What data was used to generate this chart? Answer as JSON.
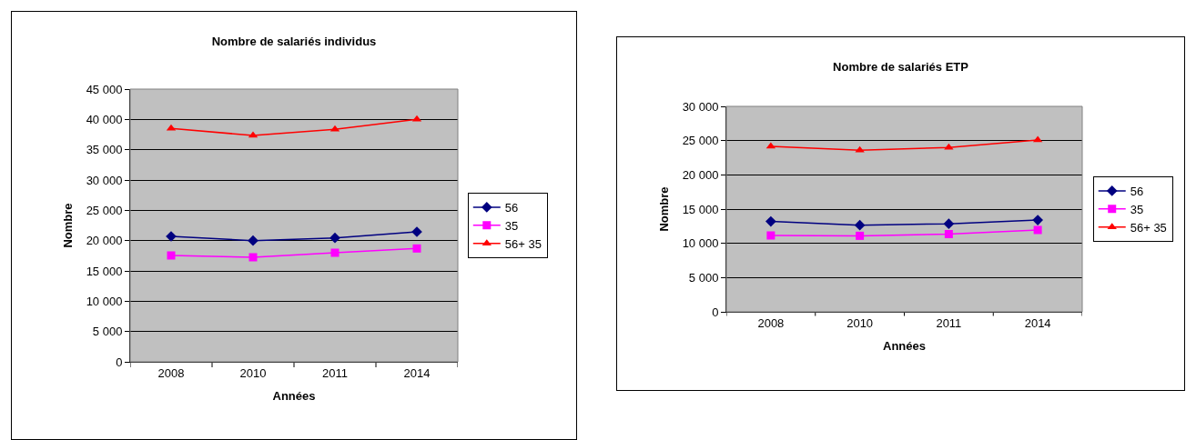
{
  "chart_data": [
    {
      "type": "line",
      "title": "Nombre de salariés individus",
      "xlabel": "Années",
      "ylabel": "Nombre",
      "categories": [
        "2008",
        "2010",
        "2011",
        "2014"
      ],
      "series": [
        {
          "name": "56",
          "color": "#000080",
          "marker": "diamond",
          "values": [
            20700,
            20000,
            20450,
            21450
          ]
        },
        {
          "name": "35",
          "color": "#ff00ff",
          "marker": "square",
          "values": [
            17550,
            17250,
            18000,
            18700
          ]
        },
        {
          "name": "56+ 35",
          "color": "#ff0000",
          "marker": "triangle",
          "values": [
            38500,
            37350,
            38350,
            40000
          ]
        }
      ],
      "ylim": [
        0,
        45000
      ],
      "yticks": [
        {
          "value": 0,
          "label": "0"
        },
        {
          "value": 5000,
          "label": "5 000"
        },
        {
          "value": 10000,
          "label": "10 000"
        },
        {
          "value": 15000,
          "label": "15 000"
        },
        {
          "value": 20000,
          "label": "20 000"
        },
        {
          "value": 25000,
          "label": "25 000"
        },
        {
          "value": 30000,
          "label": "30 000"
        },
        {
          "value": 35000,
          "label": "35 000"
        },
        {
          "value": 40000,
          "label": "40 000"
        },
        {
          "value": 45000,
          "label": "45 000"
        }
      ],
      "grid": "y",
      "legend": "right",
      "line_style": "solid"
    },
    {
      "type": "line",
      "title": "Nombre de salariés ETP",
      "xlabel": "Années",
      "ylabel": "Nombre",
      "categories": [
        "2008",
        "2010",
        "2011",
        "2014"
      ],
      "series": [
        {
          "name": "56",
          "color": "#000080",
          "marker": "diamond",
          "values": [
            13200,
            12650,
            12850,
            13400
          ]
        },
        {
          "name": "35",
          "color": "#ff00ff",
          "marker": "square",
          "values": [
            11150,
            11100,
            11350,
            11950
          ]
        },
        {
          "name": "56+ 35",
          "color": "#ff0000",
          "marker": "triangle",
          "values": [
            24150,
            23600,
            24000,
            25100
          ]
        }
      ],
      "ylim": [
        0,
        30000
      ],
      "yticks": [
        {
          "value": 0,
          "label": "0"
        },
        {
          "value": 5000,
          "label": "5 000"
        },
        {
          "value": 10000,
          "label": "10 000"
        },
        {
          "value": 15000,
          "label": "15 000"
        },
        {
          "value": 20000,
          "label": "20 000"
        },
        {
          "value": 25000,
          "label": "25 000"
        },
        {
          "value": 30000,
          "label": "30 000"
        }
      ],
      "grid": "y",
      "legend": "right",
      "line_style": "solid"
    }
  ]
}
